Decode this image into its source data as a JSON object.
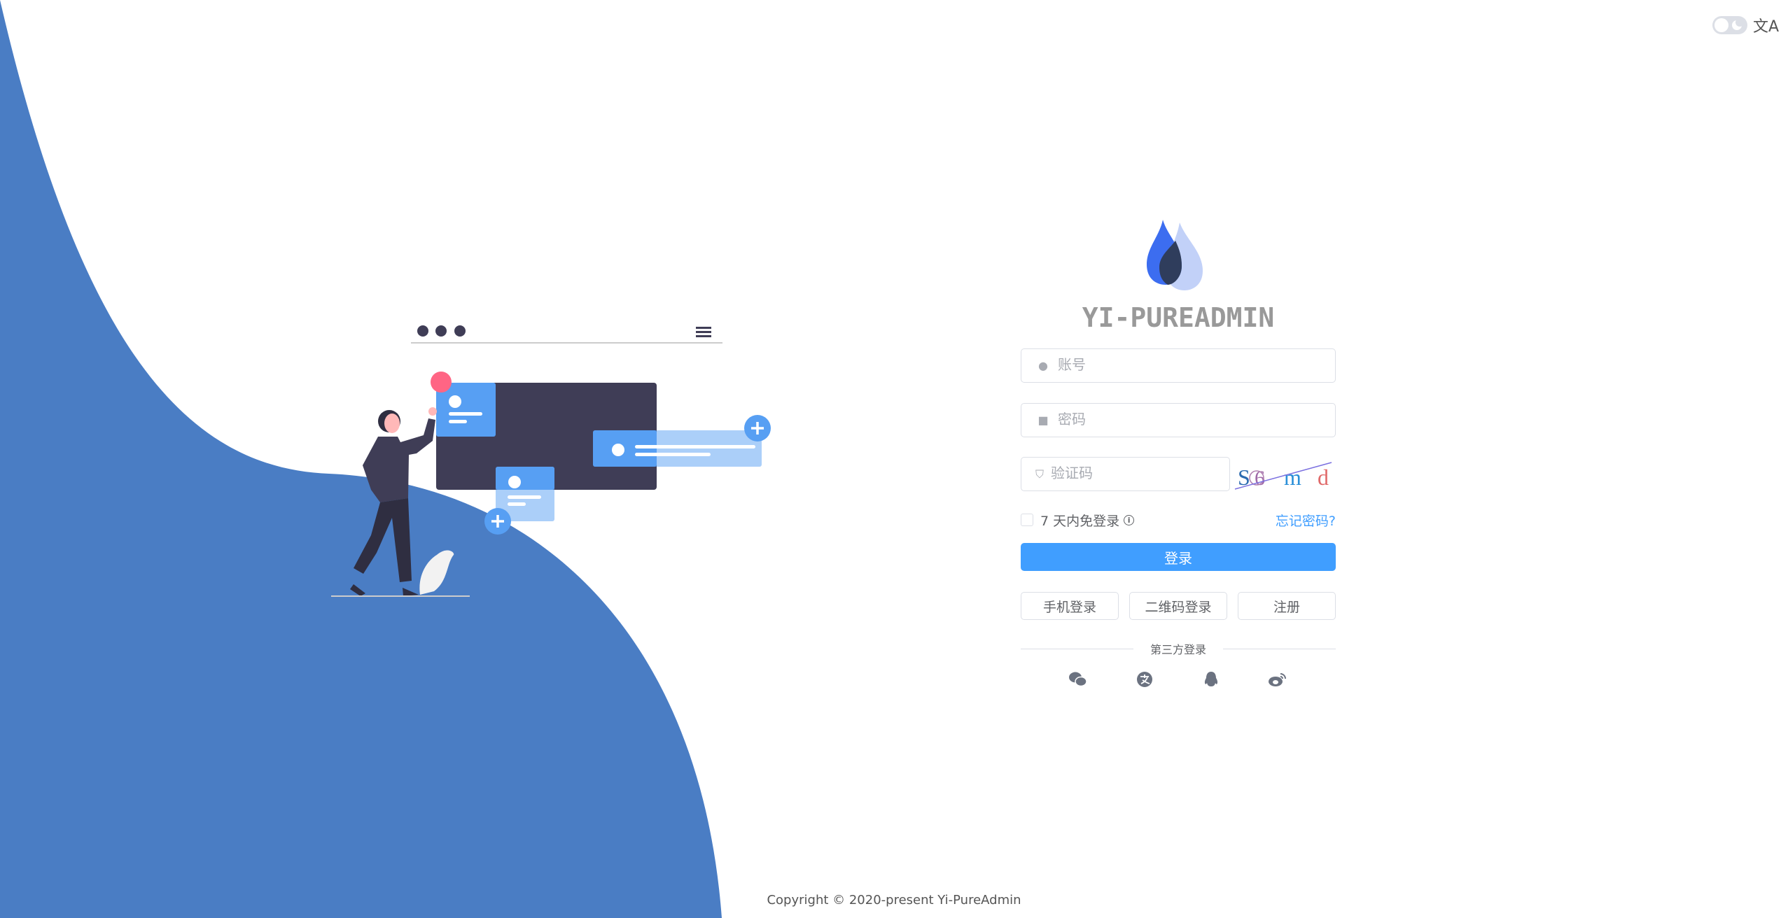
{
  "header": {
    "theme_toggle": "dark-mode-toggle",
    "language_icon": "文A"
  },
  "brand": {
    "title": "YI-PUREADMIN",
    "logo_colors": [
      "#3c6df0",
      "#c2d1f8",
      "#2f3d5c"
    ]
  },
  "form": {
    "username_placeholder": "账号",
    "password_placeholder": "密码",
    "captcha_placeholder": "验证码",
    "captcha_chars": [
      "S",
      "6",
      "m",
      "d"
    ],
    "remember_label": "7 天内免登录",
    "forgot_label": "忘记密码?",
    "login_label": "登录",
    "phone_login_label": "手机登录",
    "qr_login_label": "二维码登录",
    "register_label": "注册",
    "third_party_label": "第三方登录",
    "third_party": [
      "wechat-icon",
      "alipay-icon",
      "qq-icon",
      "weibo-icon"
    ]
  },
  "footer": {
    "copyright": "Copyright © 2020-present Yi-PureAdmin"
  },
  "colors": {
    "primary": "#409eff",
    "wave": "#4a7dc4",
    "illustration_dark": "#3f3d56"
  }
}
